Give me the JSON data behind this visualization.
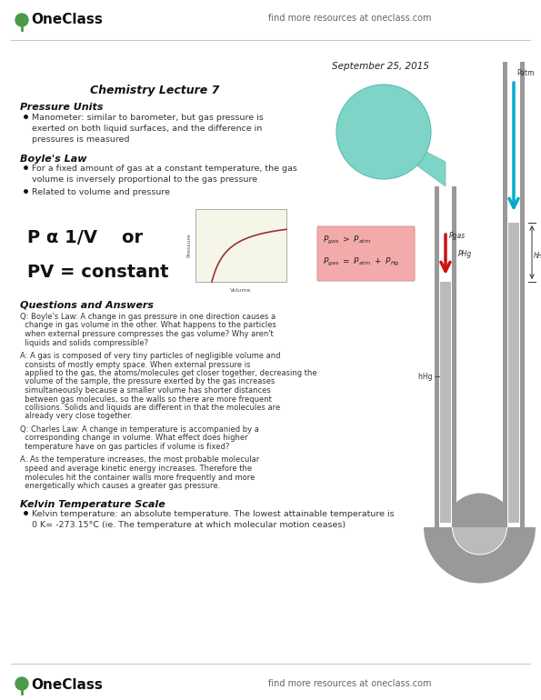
{
  "bg_color": "#ffffff",
  "header_right": "find more resources at oneclass.com",
  "date": "September 25, 2015",
  "lecture_title": "Chemistry Lecture 7",
  "section1_title": "Pressure Units",
  "bullet1_line1": "Manometer: similar to barometer, but gas pressure is",
  "bullet1_line2": "exerted on both liquid surfaces, and the difference in",
  "bullet1_line3": "pressures is measured",
  "section2_title": "Boyle's Law",
  "bullet2a_line1": "For a fixed amount of gas at a constant temperature, the gas",
  "bullet2a_line2": "volume is inversely proportional to the gas pressure",
  "bullet2b": "Related to volume and pressure",
  "formula1": "P α 1/V    or",
  "formula2": "PV = constant",
  "section3_title": "Questions and Answers",
  "qa1_q_line1": "Q: Boyle's Law: A change in gas pressure in one direction causes a",
  "qa1_q_line2": "  change in gas volume in the other. What happens to the particles",
  "qa1_q_line3": "  when external pressure compresses the gas volume? Why aren't",
  "qa1_q_line4": "  liquids and solids compressible?",
  "qa1_a_line1": "A: A gas is composed of very tiny particles of negligible volume and",
  "qa1_a_line2": "  consists of mostly empty space. When external pressure is",
  "qa1_a_line3": "  applied to the gas, the atoms/molecules get closer together, decreasing the",
  "qa1_a_line4": "  volume of the sample, the pressure exerted by the gas increases",
  "qa1_a_line5": "  simultaneously because a smaller volume has shorter distances",
  "qa1_a_line6": "  between gas molecules, so the walls so there are more frequent",
  "qa1_a_line7": "  collisions. Solids and liquids are different in that the molecules are",
  "qa1_a_line8": "  already very close together.",
  "qa2_q_line1": "Q: Charles Law: A change in temperature is accompanied by a",
  "qa2_q_line2": "  corresponding change in volume. What effect does higher",
  "qa2_q_line3": "  temperature have on gas particles if volume is fixed?",
  "qa2_a_line1": "A: As the temperature increases, the most probable molecular",
  "qa2_a_line2": "  speed and average kinetic energy increases. Therefore the",
  "qa2_a_line3": "  molecules hit the container walls more frequently and more",
  "qa2_a_line4": "  energetically which causes a greater gas pressure.",
  "section4_title": "Kelvin Temperature Scale",
  "bullet4_line1": "Kelvin temperature: an absolute temperature. The lowest attainable temperature is",
  "bullet4_line2": "0 K= -273.15°C (ie. The temperature at which molecular motion ceases)",
  "footer_left": "OneClass",
  "footer_right": "find more resources at oneclass.com",
  "green_color": "#4a9a4a",
  "teal_color": "#7fd4c8",
  "teal_dark": "#5bbdaf",
  "pink_color": "#f2aaaa",
  "gray_tube": "#999999",
  "gray_mercury": "#bbbbbb",
  "red_arrow": "#cc1111",
  "cyan_arrow": "#00aacc"
}
